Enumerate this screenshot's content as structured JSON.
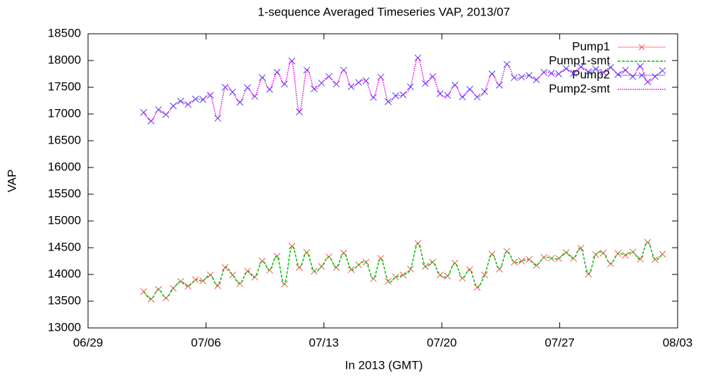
{
  "chart_data": {
    "type": "line",
    "title": "1-sequence Averaged Timeseries VAP, 2013/07",
    "x_label": "In 2013 (GMT)",
    "y_label": "VAP",
    "xlim": [
      0,
      35
    ],
    "xticks": [
      {
        "value": 0,
        "label": "06/29"
      },
      {
        "value": 7,
        "label": "07/06"
      },
      {
        "value": 14,
        "label": "07/13"
      },
      {
        "value": 21,
        "label": "07/20"
      },
      {
        "value": 28,
        "label": "07/27"
      },
      {
        "value": 35,
        "label": "08/03"
      }
    ],
    "ylim": [
      13000,
      18500
    ],
    "yticks": [
      13000,
      13500,
      14000,
      14500,
      15000,
      15500,
      16000,
      16500,
      17000,
      17500,
      18000,
      18500
    ],
    "legend": "top-right",
    "x": [
      3.3,
      3.74,
      4.18,
      4.62,
      5.06,
      5.5,
      5.94,
      6.38,
      6.82,
      7.26,
      7.7,
      8.14,
      8.58,
      9.02,
      9.46,
      9.9,
      10.34,
      10.78,
      11.22,
      11.66,
      12.1,
      12.54,
      12.98,
      13.42,
      13.86,
      14.3,
      14.74,
      15.18,
      15.62,
      16.06,
      16.5,
      16.94,
      17.38,
      17.82,
      18.26,
      18.7,
      19.14,
      19.58,
      20.02,
      20.46,
      20.9,
      21.34,
      21.78,
      22.22,
      22.66,
      23.1,
      23.54,
      23.98,
      24.42,
      24.86,
      25.3,
      25.74,
      26.18,
      26.62,
      27.06,
      27.5,
      27.94,
      28.38,
      28.82,
      29.26,
      29.7,
      30.14,
      30.58,
      31.02,
      31.46,
      31.9,
      32.34,
      32.78,
      33.22,
      33.66,
      34.1
    ],
    "series": [
      {
        "name": "Pump1",
        "color": "#ff5050",
        "marker": "x",
        "values": [
          13680,
          13540,
          13720,
          13560,
          13740,
          13870,
          13780,
          13900,
          13880,
          13990,
          13790,
          14130,
          13990,
          13830,
          14060,
          13950,
          14250,
          14080,
          14340,
          13820,
          14530,
          14130,
          14410,
          14060,
          14150,
          14330,
          14130,
          14400,
          14090,
          14180,
          14230,
          13920,
          14300,
          13870,
          13950,
          13990,
          14100,
          14580,
          14150,
          14230,
          13990,
          13970,
          14210,
          13930,
          14090,
          13760,
          13990,
          14380,
          14100,
          14430,
          14230,
          14250,
          14280,
          14170,
          14320,
          14300,
          14300,
          14410,
          14300,
          14490,
          14010,
          14370,
          14400,
          14200,
          14390,
          14360,
          14420,
          14290,
          14600,
          14280,
          14380
        ]
      },
      {
        "name": "Pump1-smt",
        "color": "#00c000",
        "line": "dashed",
        "values": [
          13680,
          13540,
          13720,
          13560,
          13740,
          13870,
          13780,
          13900,
          13880,
          13990,
          13790,
          14130,
          13990,
          13830,
          14060,
          13950,
          14250,
          14080,
          14340,
          13820,
          14530,
          14130,
          14410,
          14060,
          14150,
          14330,
          14130,
          14400,
          14090,
          14180,
          14230,
          13920,
          14300,
          13870,
          13950,
          13990,
          14100,
          14580,
          14150,
          14230,
          13990,
          13970,
          14210,
          13930,
          14090,
          13760,
          13990,
          14380,
          14100,
          14430,
          14230,
          14250,
          14280,
          14170,
          14320,
          14300,
          14300,
          14410,
          14300,
          14490,
          14010,
          14370,
          14400,
          14200,
          14390,
          14360,
          14420,
          14290,
          14600,
          14280,
          14380
        ]
      },
      {
        "name": "Pump2",
        "color": "#4040ff",
        "marker": "x",
        "values": [
          17030,
          16870,
          17080,
          16990,
          17150,
          17240,
          17180,
          17280,
          17270,
          17350,
          16920,
          17500,
          17410,
          17220,
          17490,
          17330,
          17680,
          17460,
          17780,
          17560,
          17990,
          17040,
          17820,
          17470,
          17580,
          17700,
          17560,
          17820,
          17510,
          17590,
          17620,
          17310,
          17690,
          17230,
          17340,
          17360,
          17510,
          18050,
          17570,
          17700,
          17380,
          17350,
          17540,
          17320,
          17460,
          17320,
          17420,
          17750,
          17540,
          17930,
          17680,
          17690,
          17720,
          17640,
          17780,
          17760,
          17750,
          17850,
          17760,
          17880,
          17790,
          17840,
          17780,
          17870,
          17740,
          17820,
          17700,
          17890,
          17600,
          17700,
          17810
        ]
      },
      {
        "name": "Pump2-smt",
        "color": "#e000e0",
        "line": "dotted",
        "values": [
          17030,
          16870,
          17080,
          16990,
          17150,
          17240,
          17180,
          17280,
          17270,
          17350,
          16920,
          17500,
          17410,
          17220,
          17490,
          17330,
          17680,
          17460,
          17780,
          17560,
          17990,
          17040,
          17820,
          17470,
          17580,
          17700,
          17560,
          17820,
          17510,
          17590,
          17620,
          17310,
          17690,
          17230,
          17340,
          17360,
          17510,
          18050,
          17570,
          17700,
          17380,
          17350,
          17540,
          17320,
          17460,
          17320,
          17420,
          17750,
          17540,
          17930,
          17680,
          17690,
          17720,
          17640,
          17780,
          17760,
          17750,
          17850,
          17760,
          17880,
          17790,
          17840,
          17780,
          17870,
          17740,
          17820,
          17700,
          17890,
          17600,
          17700,
          17810
        ]
      }
    ]
  }
}
